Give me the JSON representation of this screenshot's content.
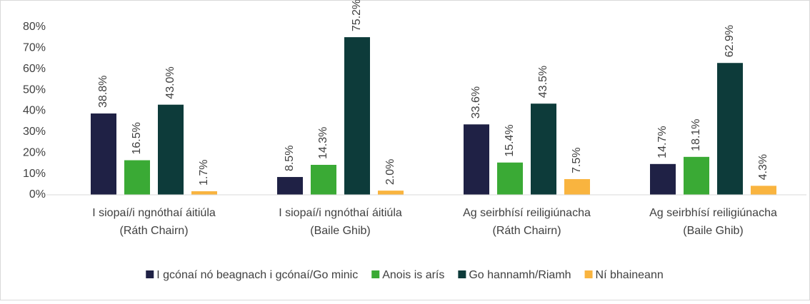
{
  "chart_data": {
    "type": "bar",
    "categories": [
      [
        "I siopaí/i ngnóthaí áitiúla",
        "(Ráth Chairn)"
      ],
      [
        "I siopaí/i ngnóthaí áitiúla",
        "(Baile Ghib)"
      ],
      [
        "Ag seirbhísí reiligiúnacha",
        "(Ráth Chairn)"
      ],
      [
        "Ag seirbhísí reiligiúnacha",
        "(Baile Ghib)"
      ]
    ],
    "series": [
      {
        "name": "I gcónaí nó beagnach i gcónaí/Go minic",
        "color": "#1f2145",
        "values": [
          38.8,
          8.5,
          33.6,
          14.7
        ],
        "value_labels": [
          "38.8%",
          "8.5%",
          "33.6%",
          "14.7%"
        ]
      },
      {
        "name": "Anois is arís",
        "color": "#3aaa35",
        "values": [
          16.5,
          14.3,
          15.4,
          18.1
        ],
        "value_labels": [
          "16.5%",
          "14.3%",
          "15.4%",
          "18.1%"
        ]
      },
      {
        "name": "Go hannamh/Riamh",
        "color": "#0d3b3a",
        "values": [
          43.0,
          75.2,
          43.5,
          62.9
        ],
        "value_labels": [
          "43.0%",
          "75.2%",
          "43.5%",
          "62.9%"
        ]
      },
      {
        "name": "Ní bhaineann",
        "color": "#f9b43f",
        "values": [
          1.7,
          2.0,
          7.5,
          4.3
        ],
        "value_labels": [
          "1.7%",
          "2.0%",
          "7.5%",
          "4.3%"
        ]
      }
    ],
    "ylim": [
      0,
      80
    ],
    "yticks": [
      {
        "value": 0,
        "label": "0%"
      },
      {
        "value": 10,
        "label": "10%"
      },
      {
        "value": 20,
        "label": "20%"
      },
      {
        "value": 30,
        "label": "30%"
      },
      {
        "value": 40,
        "label": "40%"
      },
      {
        "value": 50,
        "label": "50%"
      },
      {
        "value": 60,
        "label": "60%"
      },
      {
        "value": 70,
        "label": "70%"
      },
      {
        "value": 80,
        "label": "80%"
      }
    ],
    "grid": false,
    "legend": "bottom"
  }
}
